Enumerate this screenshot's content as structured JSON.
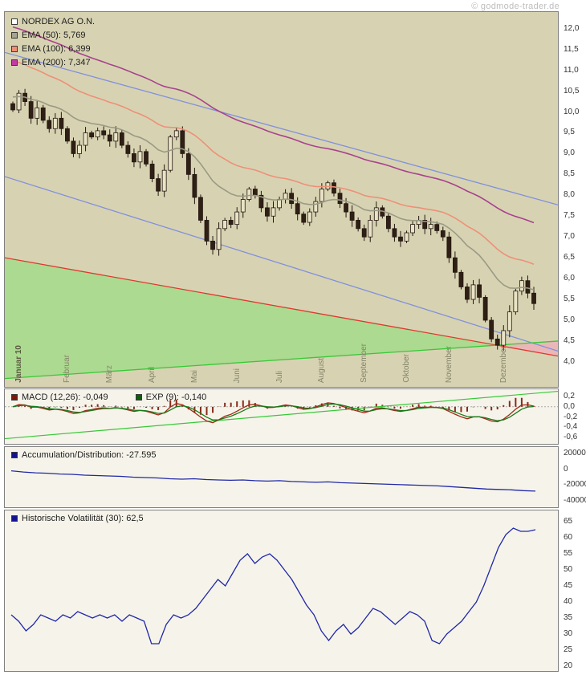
{
  "watermark": "© godmode-trader.de",
  "panels": {
    "main": {
      "legend": [
        {
          "label": "NORDEX AG O.N.",
          "swatch": "#ffffff"
        },
        {
          "label": "EMA (50): 5,769",
          "swatch": "#a4a490"
        },
        {
          "label": "EMA (100): 6,399",
          "swatch": "#ee9078"
        },
        {
          "label": "EMA (200): 7,347",
          "swatch": "#c23aa4"
        }
      ]
    },
    "macd": {
      "legend": [
        {
          "label": "MACD (12,26): -0,049",
          "swatch": "#7c1a0a"
        },
        {
          "label": "EXP (9): -0,140",
          "swatch": "#0e5e0e"
        }
      ]
    },
    "ad": {
      "legend": [
        {
          "label": "Accumulation/Distribution: -27.595",
          "swatch": "#14148e"
        }
      ]
    },
    "vol": {
      "legend": [
        {
          "label": "Historische Volatilität (30): 62,5",
          "swatch": "#14148e"
        }
      ]
    }
  },
  "chart_data": [
    {
      "type": "candlestick",
      "title": "NORDEX AG O.N.",
      "bg": "#d7d3b2",
      "ylim": [
        3.4,
        12.4
      ],
      "yticks": [
        12.0,
        11.5,
        11.0,
        10.5,
        10.0,
        9.5,
        9.0,
        8.5,
        8.0,
        7.5,
        7.0,
        6.5,
        6.0,
        5.5,
        5.0,
        4.5,
        4.0
      ],
      "ytick_labels": [
        "12,0",
        "11,5",
        "11,0",
        "10,5",
        "10,0",
        "9,5",
        "9,0",
        "8,5",
        "8,0",
        "7,5",
        "7,0",
        "6,5",
        "6,0",
        "5,5",
        "5,0",
        "4,5",
        "4,0"
      ],
      "months": [
        {
          "label": "Januar 10",
          "i": 0,
          "bold": true
        },
        {
          "label": "Februar",
          "i": 8
        },
        {
          "label": "März",
          "i": 15
        },
        {
          "label": "April",
          "i": 22
        },
        {
          "label": "Mai",
          "i": 29
        },
        {
          "label": "Juni",
          "i": 36
        },
        {
          "label": "Juli",
          "i": 43
        },
        {
          "label": "August",
          "i": 50
        },
        {
          "label": "September",
          "i": 57
        },
        {
          "label": "Oktober",
          "i": 64
        },
        {
          "label": "November",
          "i": 71
        },
        {
          "label": "Dezember",
          "i": 80
        }
      ],
      "open0": 10.2,
      "closes": [
        10.05,
        10.45,
        10.25,
        9.85,
        10.1,
        9.8,
        9.6,
        9.85,
        9.6,
        9.3,
        9.0,
        9.2,
        9.5,
        9.4,
        9.55,
        9.45,
        9.3,
        9.5,
        9.2,
        9.0,
        8.8,
        9.05,
        8.75,
        8.4,
        8.1,
        8.6,
        9.4,
        9.55,
        9.0,
        8.5,
        7.95,
        7.4,
        6.9,
        6.7,
        7.2,
        7.4,
        7.3,
        7.6,
        7.9,
        8.15,
        8.0,
        7.7,
        7.5,
        7.7,
        7.9,
        8.05,
        7.8,
        7.55,
        7.35,
        7.6,
        7.85,
        8.15,
        8.3,
        8.05,
        7.8,
        7.6,
        7.4,
        7.2,
        7.0,
        7.4,
        7.7,
        7.5,
        7.2,
        7.0,
        6.9,
        7.1,
        7.3,
        7.4,
        7.2,
        7.3,
        7.15,
        7.0,
        6.5,
        6.15,
        5.8,
        5.5,
        5.85,
        5.55,
        5.0,
        4.55,
        4.4,
        4.75,
        5.2,
        5.7,
        5.95,
        5.65,
        5.4
      ],
      "candle": {
        "up": "#e9e3c6",
        "down": "#2f1f14",
        "stroke": "#241710"
      },
      "overlays": [
        {
          "name": "EMA 50",
          "period": 17,
          "seed": 10.4,
          "color": "#9a9a85",
          "value_shown": "5,769"
        },
        {
          "name": "EMA 100",
          "period": 35,
          "seed": 11.3,
          "color": "#ee9078",
          "value_shown": "6,399"
        },
        {
          "name": "EMA 200",
          "period": 70,
          "seed": 12.1,
          "color": "#a8428e",
          "value_shown": "7,347"
        }
      ],
      "trendlines": [
        {
          "color": "#8290dc",
          "from": [
            0,
            11.43
          ],
          "to": [
            1,
            7.77
          ]
        },
        {
          "color": "#8290dc",
          "from": [
            0,
            8.45
          ],
          "to": [
            1,
            4.26
          ]
        },
        {
          "color": "#e03830",
          "from": [
            0,
            6.5
          ],
          "to": [
            1,
            4.14
          ]
        },
        {
          "color": "#38c838",
          "from": [
            0,
            3.6
          ],
          "to": [
            1,
            4.5
          ]
        }
      ],
      "regions": [
        {
          "color": "rgba(130,225,110,0.5)",
          "points": [
            [
              0,
              6.5
            ],
            [
              0.8896,
              4.4
            ],
            [
              0,
              3.6
            ]
          ]
        },
        {
          "color": "rgba(250,160,190,0.55)",
          "points": [
            [
              0.8896,
              4.4
            ],
            [
              1,
              4.5
            ],
            [
              1,
              4.14
            ]
          ]
        }
      ]
    },
    {
      "type": "macd",
      "title": "MACD (12,26) mit EXP (9)",
      "bg": "#f6f4ea",
      "ylim": [
        -0.72,
        0.34
      ],
      "yticks": [
        0.2,
        0.0,
        -0.2,
        -0.4,
        -0.6
      ],
      "ytick_labels": [
        "0,2",
        "0,0",
        "-0,2",
        "-0,4",
        "-0,6"
      ],
      "fast": 4,
      "slow": 9,
      "signal": 3,
      "render_scale": 0.5,
      "hist_scale": 2.2,
      "values_shown": {
        "macd": "-0,049",
        "exp": "-0,140"
      },
      "colors": {
        "macd": "#a02818",
        "signal": "#1a7a1a",
        "hist": "#8a2a1a"
      },
      "trendline": {
        "color": "#38c838",
        "from": [
          0,
          -0.62
        ],
        "to": [
          1,
          0.3
        ]
      }
    },
    {
      "type": "line",
      "title": "Accumulation/Distribution",
      "bg": "#f6f4ea",
      "ylim": [
        -48000,
        28000
      ],
      "yticks": [
        20000,
        0,
        -20000,
        -40000
      ],
      "ytick_labels": [
        "20000",
        "0",
        "-20000",
        "-40000"
      ],
      "color": "#2028a8",
      "last_value_shown": "-27.595",
      "values": [
        -2000,
        -3500,
        -4500,
        -5000,
        -6000,
        -6500,
        -7500,
        -8000,
        -8500,
        -9000,
        -10000,
        -10500,
        -11000,
        -12000,
        -12500,
        -12000,
        -13000,
        -13500,
        -14000,
        -13500,
        -14500,
        -15000,
        -14500,
        -15500,
        -16000,
        -16500,
        -16000,
        -17000,
        -17500,
        -18000,
        -18500,
        -19000,
        -19500,
        -20000,
        -20500,
        -21000,
        -22000,
        -23000,
        -24000,
        -25000,
        -25500,
        -26000,
        -27000,
        -27595
      ]
    },
    {
      "type": "line",
      "title": "Historische Volatilität (30)",
      "bg": "#f6f4ea",
      "ylim": [
        18.5,
        68.5
      ],
      "yticks": [
        65,
        60,
        55,
        50,
        45,
        40,
        35,
        30,
        25,
        20
      ],
      "ytick_labels": [
        "65",
        "60",
        "55",
        "50",
        "45",
        "40",
        "35",
        "30",
        "25",
        "20"
      ],
      "color": "#2028a8",
      "last_value_shown": "62,5",
      "values": [
        36,
        34,
        31,
        33,
        36,
        35,
        34,
        36,
        35,
        37,
        36,
        35,
        36,
        35,
        36,
        34,
        36,
        35,
        34,
        27,
        27,
        33,
        36,
        35,
        36,
        38,
        41,
        44,
        47,
        45,
        49,
        53,
        55,
        52,
        54,
        55,
        53,
        50,
        47,
        43,
        39,
        36,
        31,
        28,
        31,
        33,
        30,
        32,
        35,
        38,
        37,
        35,
        33,
        35,
        37,
        36,
        34,
        28,
        27,
        30,
        32,
        34,
        37,
        40,
        45,
        51,
        57,
        61,
        63,
        62,
        62,
        62.5
      ]
    }
  ]
}
